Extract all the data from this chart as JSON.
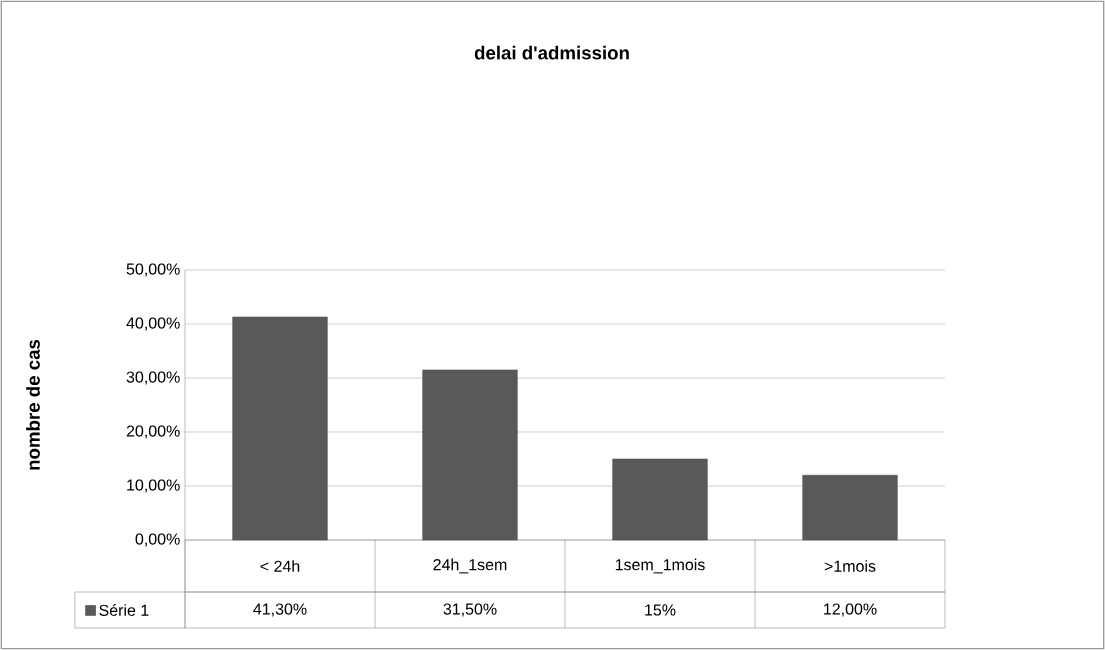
{
  "chart_data": {
    "type": "bar",
    "title": "delai d'admission",
    "ylabel": "nombre de cas",
    "categories": [
      "< 24h",
      "24h_1sem",
      "1sem_1mois",
      ">1mois"
    ],
    "series": [
      {
        "name": "Série 1",
        "color": "#595959",
        "values": [
          41.3,
          31.5,
          15,
          12
        ],
        "value_labels": [
          "41,30%",
          "31,50%",
          "15%",
          "12,00%"
        ]
      }
    ],
    "ylim": [
      0,
      50
    ],
    "yticks": [
      {
        "value": 0,
        "label": "0,00%"
      },
      {
        "value": 10,
        "label": "10,00%"
      },
      {
        "value": 20,
        "label": "20,00%"
      },
      {
        "value": 30,
        "label": "30,00%"
      },
      {
        "value": 40,
        "label": "40,00%"
      },
      {
        "value": 50,
        "label": "50,00%"
      }
    ],
    "grid": "y",
    "legend": "bottom"
  }
}
